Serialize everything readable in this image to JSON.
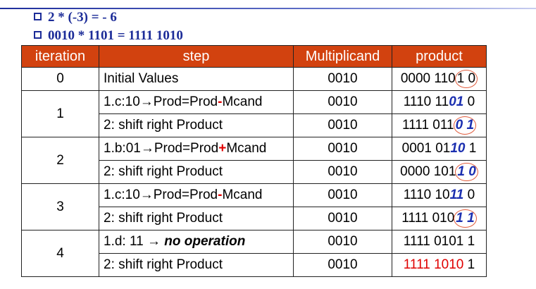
{
  "bullets": [
    "2 * (-3) = - 6",
    "0010 * 1101 = 1111 1010"
  ],
  "headers": [
    "iteration",
    "step",
    "Multiplicand",
    "product"
  ],
  "iterations": [
    "0",
    "1",
    "2",
    "3",
    "4"
  ],
  "rows": {
    "r0": {
      "step": "Initial Values",
      "mc": "0010",
      "p_a": "0000 110",
      "p_circ": "1 0"
    },
    "r1": {
      "step_a": "1.c:10→Prod=Prod",
      "op": "-",
      "step_b": "Mcand",
      "mc": "0010",
      "p_a": "1110 11",
      "p_bold": "01",
      "p_c": " 0"
    },
    "r2": {
      "step": "2: shift right Product",
      "mc": "0010",
      "p_a": "1111 011",
      "p_circ": "0 1"
    },
    "r3": {
      "step_a": "1.b:01→Prod=Prod",
      "op": "+",
      "step_b": "Mcand",
      "mc": "0010",
      "p_a": "0001 01",
      "p_bold": "10",
      "p_c": " 1"
    },
    "r4": {
      "step": "2: shift right Product",
      "mc": "0010",
      "p_a": "0000 101",
      "p_circ": "1 0"
    },
    "r5": {
      "step_a": "1.c:10→Prod=Prod",
      "op": "-",
      "step_b": "Mcand",
      "mc": "0010",
      "p_a": "1110 10",
      "p_bold": "11",
      "p_c": " 0"
    },
    "r6": {
      "step": "2: shift right Product",
      "mc": "0010",
      "p_a": "1111 010",
      "p_circ": "1 1"
    },
    "r7": {
      "step_a": "1.d: 11 → ",
      "step_bi": "no operation",
      "mc": "0010",
      "p": "1111 0101 1"
    },
    "r8": {
      "step": "2: shift right Product",
      "mc": "0010",
      "p_red": "1111 1010",
      "p_c": " 1"
    }
  },
  "colors": {
    "header_bg": "#d2420f",
    "accent_red": "#e00000",
    "accent_blue": "#1b2fb0",
    "bullet_blue": "#1c2c98"
  }
}
